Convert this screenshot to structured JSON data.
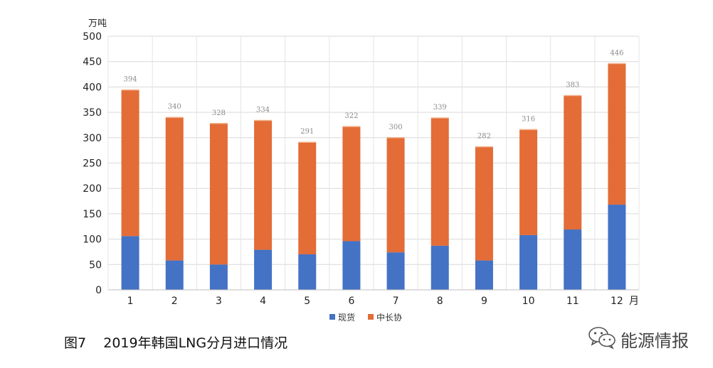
{
  "chart_data": {
    "type": "bar",
    "stacked": true,
    "categories": [
      "1",
      "2",
      "3",
      "4",
      "5",
      "6",
      "7",
      "8",
      "9",
      "10",
      "11",
      "12"
    ],
    "series": [
      {
        "name": "现货",
        "color": "#4472C4",
        "values": [
          106,
          58,
          50,
          79,
          70,
          96,
          74,
          87,
          58,
          108,
          119,
          168
        ]
      },
      {
        "name": "中长协",
        "color": "#E36C37",
        "values": [
          288,
          282,
          278,
          255,
          221,
          226,
          226,
          252,
          224,
          208,
          264,
          278
        ]
      }
    ],
    "totals": [
      "394",
      "340",
      "328",
      "334",
      "291",
      "322",
      "300",
      "339",
      "282",
      "316",
      "383",
      "446"
    ],
    "ylim": [
      0,
      500
    ],
    "yticks": [
      "0",
      "50",
      "100",
      "150",
      "200",
      "250",
      "300",
      "350",
      "400",
      "450",
      "500"
    ],
    "ylabel": "万吨",
    "xlabel": "月",
    "grid": true,
    "legend_position": "bottom"
  },
  "caption": "图7    2019年韩国LNG分月进口情况",
  "watermark": {
    "name": "能源情报",
    "icon": "wechat-icon"
  }
}
